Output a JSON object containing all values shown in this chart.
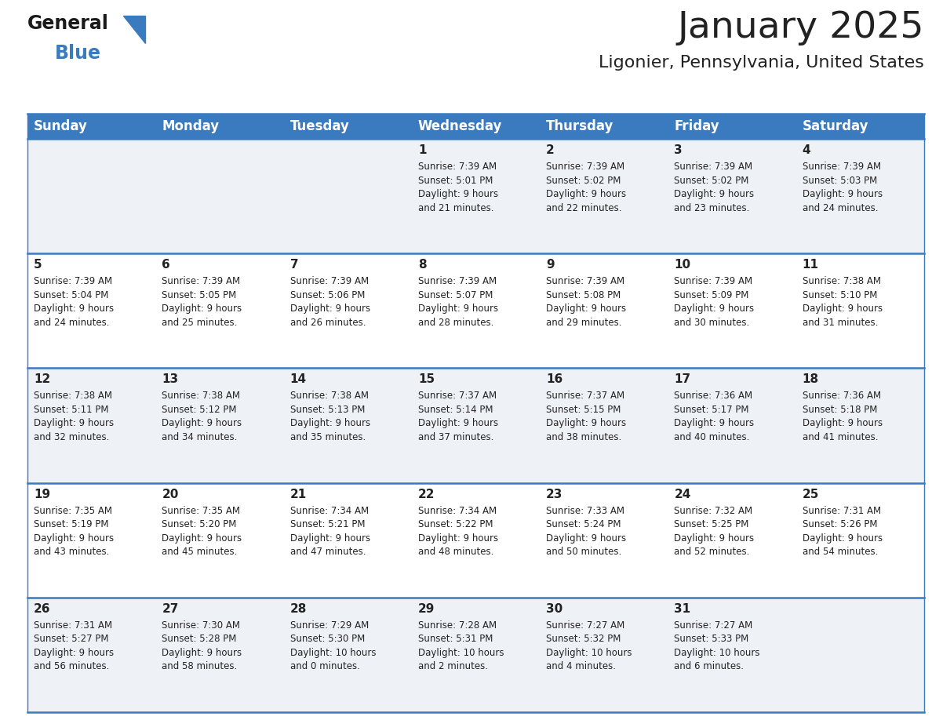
{
  "title": "January 2025",
  "subtitle": "Ligonier, Pennsylvania, United States",
  "header_color": "#3a7abf",
  "header_text_color": "#ffffff",
  "days_of_week": [
    "Sunday",
    "Monday",
    "Tuesday",
    "Wednesday",
    "Thursday",
    "Friday",
    "Saturday"
  ],
  "bg_color": "#ffffff",
  "cell_bg_even": "#eef2f7",
  "cell_bg_odd": "#ffffff",
  "row_separator_color": "#3a7abf",
  "text_color": "#222222",
  "calendar_data": [
    [
      {
        "day": null,
        "info": null
      },
      {
        "day": null,
        "info": null
      },
      {
        "day": null,
        "info": null
      },
      {
        "day": 1,
        "info": "Sunrise: 7:39 AM\nSunset: 5:01 PM\nDaylight: 9 hours\nand 21 minutes."
      },
      {
        "day": 2,
        "info": "Sunrise: 7:39 AM\nSunset: 5:02 PM\nDaylight: 9 hours\nand 22 minutes."
      },
      {
        "day": 3,
        "info": "Sunrise: 7:39 AM\nSunset: 5:02 PM\nDaylight: 9 hours\nand 23 minutes."
      },
      {
        "day": 4,
        "info": "Sunrise: 7:39 AM\nSunset: 5:03 PM\nDaylight: 9 hours\nand 24 minutes."
      }
    ],
    [
      {
        "day": 5,
        "info": "Sunrise: 7:39 AM\nSunset: 5:04 PM\nDaylight: 9 hours\nand 24 minutes."
      },
      {
        "day": 6,
        "info": "Sunrise: 7:39 AM\nSunset: 5:05 PM\nDaylight: 9 hours\nand 25 minutes."
      },
      {
        "day": 7,
        "info": "Sunrise: 7:39 AM\nSunset: 5:06 PM\nDaylight: 9 hours\nand 26 minutes."
      },
      {
        "day": 8,
        "info": "Sunrise: 7:39 AM\nSunset: 5:07 PM\nDaylight: 9 hours\nand 28 minutes."
      },
      {
        "day": 9,
        "info": "Sunrise: 7:39 AM\nSunset: 5:08 PM\nDaylight: 9 hours\nand 29 minutes."
      },
      {
        "day": 10,
        "info": "Sunrise: 7:39 AM\nSunset: 5:09 PM\nDaylight: 9 hours\nand 30 minutes."
      },
      {
        "day": 11,
        "info": "Sunrise: 7:38 AM\nSunset: 5:10 PM\nDaylight: 9 hours\nand 31 minutes."
      }
    ],
    [
      {
        "day": 12,
        "info": "Sunrise: 7:38 AM\nSunset: 5:11 PM\nDaylight: 9 hours\nand 32 minutes."
      },
      {
        "day": 13,
        "info": "Sunrise: 7:38 AM\nSunset: 5:12 PM\nDaylight: 9 hours\nand 34 minutes."
      },
      {
        "day": 14,
        "info": "Sunrise: 7:38 AM\nSunset: 5:13 PM\nDaylight: 9 hours\nand 35 minutes."
      },
      {
        "day": 15,
        "info": "Sunrise: 7:37 AM\nSunset: 5:14 PM\nDaylight: 9 hours\nand 37 minutes."
      },
      {
        "day": 16,
        "info": "Sunrise: 7:37 AM\nSunset: 5:15 PM\nDaylight: 9 hours\nand 38 minutes."
      },
      {
        "day": 17,
        "info": "Sunrise: 7:36 AM\nSunset: 5:17 PM\nDaylight: 9 hours\nand 40 minutes."
      },
      {
        "day": 18,
        "info": "Sunrise: 7:36 AM\nSunset: 5:18 PM\nDaylight: 9 hours\nand 41 minutes."
      }
    ],
    [
      {
        "day": 19,
        "info": "Sunrise: 7:35 AM\nSunset: 5:19 PM\nDaylight: 9 hours\nand 43 minutes."
      },
      {
        "day": 20,
        "info": "Sunrise: 7:35 AM\nSunset: 5:20 PM\nDaylight: 9 hours\nand 45 minutes."
      },
      {
        "day": 21,
        "info": "Sunrise: 7:34 AM\nSunset: 5:21 PM\nDaylight: 9 hours\nand 47 minutes."
      },
      {
        "day": 22,
        "info": "Sunrise: 7:34 AM\nSunset: 5:22 PM\nDaylight: 9 hours\nand 48 minutes."
      },
      {
        "day": 23,
        "info": "Sunrise: 7:33 AM\nSunset: 5:24 PM\nDaylight: 9 hours\nand 50 minutes."
      },
      {
        "day": 24,
        "info": "Sunrise: 7:32 AM\nSunset: 5:25 PM\nDaylight: 9 hours\nand 52 minutes."
      },
      {
        "day": 25,
        "info": "Sunrise: 7:31 AM\nSunset: 5:26 PM\nDaylight: 9 hours\nand 54 minutes."
      }
    ],
    [
      {
        "day": 26,
        "info": "Sunrise: 7:31 AM\nSunset: 5:27 PM\nDaylight: 9 hours\nand 56 minutes."
      },
      {
        "day": 27,
        "info": "Sunrise: 7:30 AM\nSunset: 5:28 PM\nDaylight: 9 hours\nand 58 minutes."
      },
      {
        "day": 28,
        "info": "Sunrise: 7:29 AM\nSunset: 5:30 PM\nDaylight: 10 hours\nand 0 minutes."
      },
      {
        "day": 29,
        "info": "Sunrise: 7:28 AM\nSunset: 5:31 PM\nDaylight: 10 hours\nand 2 minutes."
      },
      {
        "day": 30,
        "info": "Sunrise: 7:27 AM\nSunset: 5:32 PM\nDaylight: 10 hours\nand 4 minutes."
      },
      {
        "day": 31,
        "info": "Sunrise: 7:27 AM\nSunset: 5:33 PM\nDaylight: 10 hours\nand 6 minutes."
      },
      {
        "day": null,
        "info": null
      }
    ]
  ],
  "logo_color_general": "#1a1a1a",
  "logo_color_blue": "#3a7abf",
  "title_fontsize": 34,
  "subtitle_fontsize": 16,
  "header_fontsize": 12,
  "day_number_fontsize": 11,
  "info_fontsize": 8.5
}
